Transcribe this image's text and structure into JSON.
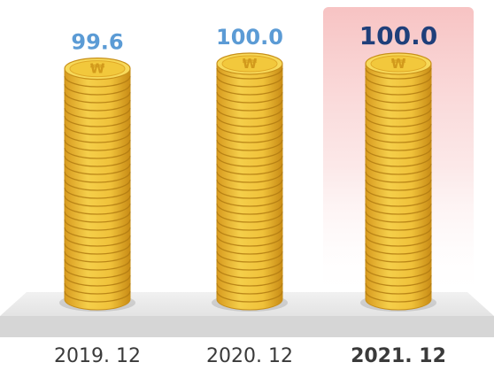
{
  "chart_data": {
    "type": "bar",
    "categories": [
      "2019. 12",
      "2020. 12",
      "2021. 12"
    ],
    "values": [
      99.6,
      100.0,
      100.0
    ],
    "value_labels": [
      "99.6",
      "100.0",
      "100.0"
    ],
    "highlight_index": 2,
    "colors": {
      "value_label": "#5b9bd5",
      "value_label_highlight": "#1f3f7a",
      "category_label": "#3a3a3a",
      "coin_fill": "#f2c83c",
      "coin_edge": "#c8901a",
      "coin_dark": "#b27b12",
      "coin_top": "#f7d95a",
      "highlight_bg": "#f8c9c9",
      "floor": "#e6e6e6"
    },
    "icons": {
      "coin_symbol": "won-sign"
    }
  }
}
